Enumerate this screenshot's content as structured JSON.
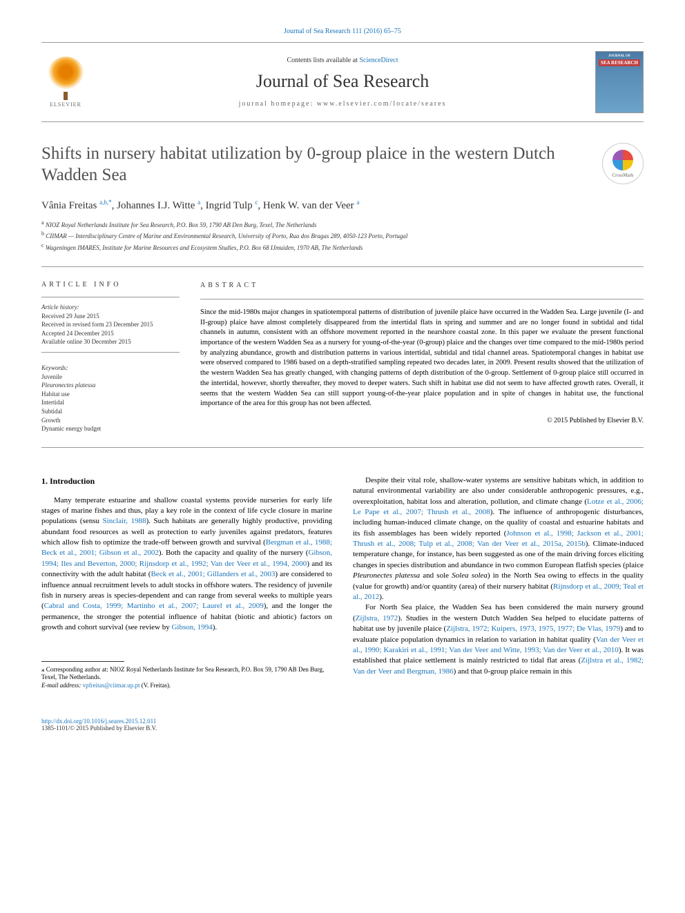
{
  "header": {
    "top_link_text": "Journal of Sea Research 111 (2016) 65–75",
    "contents_prefix": "Contents lists available at ",
    "contents_link": "ScienceDirect",
    "journal_name": "Journal of Sea Research",
    "homepage_prefix": "journal homepage: ",
    "homepage_url": "www.elsevier.com/locate/seares",
    "elsevier_label": "ELSEVIER",
    "cover_top": "JOURNAL OF",
    "cover_title": "SEA RESEARCH",
    "crossmark_label": "CrossMark"
  },
  "article": {
    "title": "Shifts in nursery habitat utilization by 0-group plaice in the western Dutch Wadden Sea",
    "authors_html": "Vânia Freitas <sup>a,b,*</sup>, Johannes I.J. Witte <sup>a</sup>, Ingrid Tulp <sup>c</sup>, Henk W. van der Veer <sup>a</sup>",
    "affiliations": {
      "a": "NIOZ Royal Netherlands Institute for Sea Research, P.O. Box 59, 1790 AB Den Burg, Texel, The Netherlands",
      "b": "CIIMAR — Interdisciplinary Centre of Marine and Environmental Research, University of Porto, Rua dos Bragas 289, 4050-123 Porto, Portugal",
      "c": "Wageningen IMARES, Institute for Marine Resources and Ecosystem Studies, P.O. Box 68 IJmuiden, 1970 AB, The Netherlands"
    }
  },
  "info": {
    "heading": "article info",
    "history_label": "Article history:",
    "received": "Received 29 June 2015",
    "revised": "Received in revised form 23 December 2015",
    "accepted": "Accepted 24 December 2015",
    "online": "Available online 30 December 2015",
    "keywords_label": "Keywords:",
    "keywords": [
      "Juvenile",
      "Pleuronectes platessa",
      "Habitat use",
      "Intertidal",
      "Subtidal",
      "Growth",
      "Dynamic energy budget"
    ]
  },
  "abstract": {
    "heading": "abstract",
    "text": "Since the mid-1980s major changes in spatiotemporal patterns of distribution of juvenile plaice have occurred in the Wadden Sea. Large juvenile (I- and II-group) plaice have almost completely disappeared from the intertidal flats in spring and summer and are no longer found in subtidal and tidal channels in autumn, consistent with an offshore movement reported in the nearshore coastal zone. In this paper we evaluate the present functional importance of the western Wadden Sea as a nursery for young-of-the-year (0-group) plaice and the changes over time compared to the mid-1980s period by analyzing abundance, growth and distribution patterns in various intertidal, subtidal and tidal channel areas. Spatiotemporal changes in habitat use were observed compared to 1986 based on a depth-stratified sampling repeated two decades later, in 2009. Present results showed that the utilization of the western Wadden Sea has greatly changed, with changing patterns of depth distribution of the 0-group. Settlement of 0-group plaice still occurred in the intertidal, however, shortly thereafter, they moved to deeper waters. Such shift in habitat use did not seem to have affected growth rates. Overall, it seems that the western Wadden Sea can still support young-of-the-year plaice population and in spite of changes in habitat use, the functional importance of the area for this group has not been affected.",
    "copyright": "© 2015 Published by Elsevier B.V."
  },
  "body": {
    "intro_heading": "1. Introduction",
    "col1": {
      "p1a": "Many temperate estuarine and shallow coastal systems provide nurseries for early life stages of marine fishes and thus, play a key role in the context of life cycle closure in marine populations (sensu ",
      "r1": "Sinclair, 1988",
      "p1b": "). Such habitats are generally highly productive, providing abundant food resources as well as protection to early juveniles against predators, features which allow fish to optimize the trade-off between growth and survival (",
      "r2": "Bergman et al., 1988; Beck et al., 2001; Gibson et al., 2002",
      "p1c": "). Both the capacity and quality of the nursery (",
      "r3": "Gibson, 1994; Iles and Beverton, 2000; Rijnsdorp et al., 1992; Van der Veer et al., 1994, 2000",
      "p1d": ") and its connectivity with the adult habitat (",
      "r4": "Beck et al., 2001; Gillanders et al., 2003",
      "p1e": ") are considered to influence annual recruitment levels to adult stocks in offshore waters. The residency of juvenile fish in nursery areas is species-dependent and can range from several weeks to multiple years (",
      "r5": "Cabral and Costa, 1999; Martinho et al., 2007; Laurel et al., 2009",
      "p1f": "), and the longer the permanence, the stronger the potential influence of habitat (biotic and abiotic) factors on growth and cohort survival (see review by ",
      "r6": "Gibson, 1994",
      "p1g": ")."
    },
    "col2": {
      "p1a": "Despite their vital role, shallow-water systems are sensitive habitats which, in addition to natural environmental variability are also under considerable anthropogenic pressures, e.g., overexploitation, habitat loss and alteration, pollution, and climate change (",
      "r1": "Lotze et al., 2006; Le Pape et al., 2007; Thrush et al., 2008",
      "p1b": "). The influence of anthropogenic disturbances, including human-induced climate change, on the quality of coastal and estuarine habitats and its fish assemblages has been widely reported (",
      "r2": "Johnson et al., 1998; Jackson et al., 2001; Thrush et al., 2008; Tulp et al., 2008; Van der Veer et al., 2015a, 2015b",
      "p1c": "). Climate-induced temperature change, for instance, has been suggested as one of the main driving forces eliciting changes in species distribution and abundance in two common European flatfish species (plaice ",
      "sp1": "Pleuronectes platessa",
      "p1d": " and sole ",
      "sp2": "Solea solea",
      "p1e": ") in the North Sea owing to effects in the quality (value for growth) and/or quantity (area) of their nursery habitat (",
      "r3": "Rijnsdorp et al., 2009; Teal et al., 2012",
      "p1f": ").",
      "p2a": "For North Sea plaice, the Wadden Sea has been considered the main nursery ground (",
      "r4": "Zijlstra, 1972",
      "p2b": "). Studies in the western Dutch Wadden Sea helped to elucidate patterns of habitat use by juvenile plaice (",
      "r5": "Zijlstra, 1972; Kuipers, 1973, 1975, 1977; De Vlas, 1979",
      "p2c": ") and to evaluate plaice population dynamics in relation to variation in habitat quality (",
      "r6": "Van der Veer et al., 1990; Karakiri et al., 1991; Van der Veer and Witte, 1993; Van der Veer et al., 2010",
      "p2d": "). It was established that plaice settlement is mainly restricted to tidal flat areas (",
      "r7": "Zijlstra et al., 1982; Van der Veer and Bergman, 1986",
      "p2e": ") and that 0-group plaice remain in this"
    }
  },
  "footnote": {
    "corr_label": "⁎ Corresponding author at: NIOZ Royal Netherlands Institute for Sea Research, P.O. Box 59, 1790 AB Den Burg, Texel, The Netherlands.",
    "email_label": "E-mail address:",
    "email": "vpfreitas@ciimar.up.pt",
    "email_author": "(V. Freitas)."
  },
  "bottom": {
    "doi": "http://dx.doi.org/10.1016/j.seares.2015.12.011",
    "issn_copyright": "1385-1101/© 2015 Published by Elsevier B.V."
  },
  "style": {
    "link_color": "#1a73b8",
    "text_color": "#000000",
    "title_color": "#505050",
    "body_fontsize": 11,
    "abstract_fontsize": 10.5,
    "title_fontsize": 25,
    "journal_fontsize": 26
  }
}
